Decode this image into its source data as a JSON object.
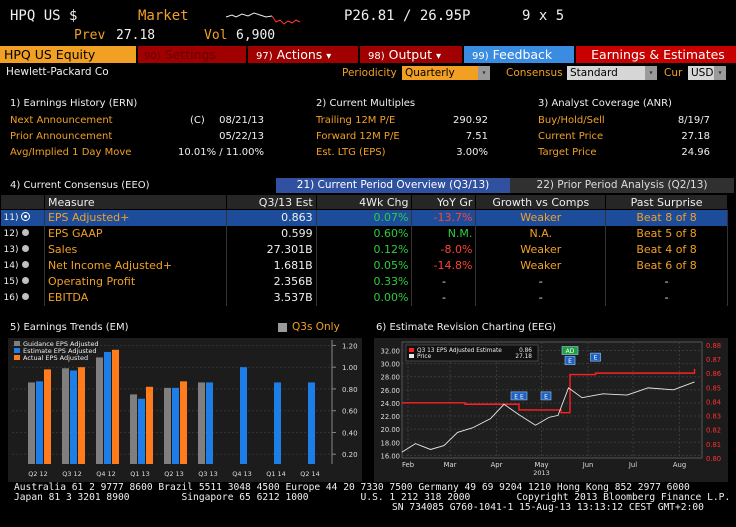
{
  "header": {
    "ticker": "HPQ US $",
    "market_label": "Market",
    "price": "P26.81 / 26.95P",
    "size": "9 x 5",
    "prev_label": "Prev",
    "prev_value": "27.18",
    "vol_label": "Vol",
    "vol_value": "6,900"
  },
  "toolbar": {
    "ticker_equity": "HPQ US Equity",
    "settings_num": "90)",
    "settings_label": "Settings",
    "actions_num": "97)",
    "actions_label": "Actions",
    "output_num": "98)",
    "output_label": "Output",
    "feedback_num": "99)",
    "feedback_label": "Feedback",
    "earnings_label": "Earnings & Estimates",
    "dropdown_glyph": "▾"
  },
  "subbar": {
    "company": "Hewlett-Packard Co",
    "periodicity_label": "Periodicity",
    "periodicity_value": "Quarterly",
    "consensus_label": "Consensus",
    "consensus_value": "Standard",
    "cur_label": "Cur",
    "cur_value": "USD"
  },
  "earnings_history": {
    "title": "1) Earnings History (ERN)",
    "rows": [
      {
        "label": "Next Announcement",
        "flag": "(C)",
        "value": "08/21/13"
      },
      {
        "label": "Prior Announcement",
        "flag": "",
        "value": "05/22/13"
      },
      {
        "label": "Avg/Implied 1 Day Move",
        "flag": "",
        "value": "10.01% / 11.00%"
      }
    ]
  },
  "current_multiples": {
    "title": "2) Current Multiples",
    "rows": [
      {
        "label": "Trailing 12M P/E",
        "value": "290.92"
      },
      {
        "label": "Forward 12M P/E",
        "value": "7.51"
      },
      {
        "label": "Est. LTG (EPS)",
        "value": "3.00%"
      }
    ]
  },
  "analyst_coverage": {
    "title": "3) Analyst Coverage (ANR)",
    "rows": [
      {
        "label": "Buy/Hold/Sell",
        "value": "8/19/7"
      },
      {
        "label": "Current Price",
        "value": "27.18"
      },
      {
        "label": "Target Price",
        "value": "24.96"
      }
    ]
  },
  "consensus": {
    "title": "4) Current Consensus (EEO)",
    "tab_current": "21) Current Period Overview (Q3/13)",
    "tab_prior": "22) Prior Period Analysis (Q2/13)",
    "headers": [
      "Measure",
      "Q3/13 Est",
      "4Wk Chg",
      "YoY Gr",
      "Growth vs Comps",
      "Past Surprise"
    ],
    "rows": [
      {
        "num": "11)",
        "measure": "EPS Adjusted+",
        "est": "0.863",
        "chg": "0.07%",
        "yoy": "-13.7%",
        "comps": "Weaker",
        "surprise": "Beat 8 of 8"
      },
      {
        "num": "12)",
        "measure": "EPS GAAP",
        "est": "0.599",
        "chg": "0.60%",
        "yoy": "N.M.",
        "comps": "N.A.",
        "surprise": "Beat 5 of 8"
      },
      {
        "num": "13)",
        "measure": "Sales",
        "est": "27.301B",
        "chg": "0.12%",
        "yoy": "-8.0%",
        "comps": "Weaker",
        "surprise": "Beat 4 of 8"
      },
      {
        "num": "14)",
        "measure": "Net Income Adjusted+",
        "est": "1.681B",
        "chg": "0.05%",
        "yoy": "-14.8%",
        "comps": "Weaker",
        "surprise": "Beat 6 of 8"
      },
      {
        "num": "15)",
        "measure": "Operating Profit",
        "est": "2.356B",
        "chg": "0.33%",
        "yoy": "-",
        "comps": "-",
        "surprise": "-"
      },
      {
        "num": "16)",
        "measure": "EBITDA",
        "est": "3.537B",
        "chg": "0.00%",
        "yoy": "-",
        "comps": "-",
        "surprise": "-"
      }
    ]
  },
  "earnings_trends": {
    "title": "5) Earnings Trends (EM)",
    "q3s_label": "Q3s Only",
    "colors": {
      "guidance": "#7f7f7f",
      "estimate": "#1e7ee8",
      "actual": "#ff7b1c"
    },
    "chart_data": {
      "type": "bar",
      "categories": [
        "Q2 12",
        "Q3 12",
        "Q4 12",
        "Q1 13",
        "Q2 13",
        "Q3 13",
        "Q4 13",
        "Q1 14",
        "Q2 14"
      ],
      "series": [
        {
          "name": "Guidance EPS Adjusted",
          "values": [
            0.86,
            0.99,
            1.09,
            0.75,
            0.81,
            0.86,
            null,
            null,
            null
          ]
        },
        {
          "name": "Estimate EPS Adjusted",
          "values": [
            0.87,
            0.97,
            1.14,
            0.71,
            0.81,
            0.86,
            1.0,
            0.86,
            0.86
          ]
        },
        {
          "name": "Actual EPS Adjusted",
          "values": [
            0.98,
            1.0,
            1.16,
            0.82,
            0.87,
            null,
            null,
            null,
            null
          ]
        }
      ],
      "yticks": [
        "0.20",
        "0.40",
        "0.60",
        "0.80",
        "1.00",
        "1.20"
      ],
      "ylim": [
        0.11,
        1.25
      ]
    }
  },
  "estimate_revision": {
    "title": "6) Estimate Revision Charting (EEG)",
    "legend_est": "Q3 13 EPS Adjusted Estimate",
    "legend_est_value": "0.86",
    "legend_price": "Price",
    "legend_price_value": "27.18",
    "colors": {
      "estimate": "#ff2020",
      "price": "#e8e8e8"
    },
    "year_label": "2013",
    "chart_data": {
      "type": "line",
      "x_labels": [
        "Feb",
        "Mar",
        "Apr",
        "May",
        "Jun",
        "Jul",
        "Aug"
      ],
      "left_ticks": [
        "16.00",
        "18.00",
        "20.00",
        "22.00",
        "24.00",
        "26.00",
        "28.00",
        "30.00",
        "32.00"
      ],
      "right_ticks": [
        "0.80",
        "0.81",
        "0.82",
        "0.83",
        "0.84",
        "0.85",
        "0.86",
        "0.87",
        "0.88"
      ],
      "left_lim": [
        15.6,
        33.3
      ],
      "right_lim": [
        0.8,
        0.882
      ],
      "price_series": {
        "name": "Price",
        "x": [
          "2013-02-01",
          "2013-02-10",
          "2013-02-20",
          "2013-03-01",
          "2013-03-10",
          "2013-03-20",
          "2013-04-01",
          "2013-04-10",
          "2013-04-20",
          "2013-05-01",
          "2013-05-10",
          "2013-05-16",
          "2013-05-23",
          "2013-06-01",
          "2013-06-15",
          "2013-07-01",
          "2013-07-15",
          "2013-08-01",
          "2013-08-15"
        ],
        "values": [
          16.5,
          17.8,
          16.9,
          17.5,
          19.5,
          20.2,
          21.6,
          23.8,
          22.2,
          20.6,
          21.8,
          22.1,
          26.3,
          24.8,
          25.4,
          25.2,
          26.3,
          26.0,
          27.2
        ]
      },
      "estimate_series": {
        "name": "Q3 13 EPS Adjusted Estimate",
        "x": [
          "2013-02-01",
          "2013-03-15",
          "2013-04-20",
          "2013-05-18",
          "2013-05-24",
          "2013-06-10",
          "2013-07-10",
          "2013-08-15"
        ],
        "values": [
          0.839,
          0.838,
          0.834,
          0.832,
          0.859,
          0.86,
          0.86,
          0.863
        ]
      },
      "markers": [
        {
          "label": "E E",
          "x": "2013-04-20"
        },
        {
          "label": "E",
          "x": "2013-05-08"
        },
        {
          "label": "E",
          "x": "2013-05-24"
        },
        {
          "label": "AD",
          "x": "2013-05-24"
        },
        {
          "label": "E",
          "x": "2013-06-10"
        }
      ]
    }
  },
  "footer": {
    "line1": "Australia 61 2 9777 8600 Brazil 5511 3048 4500 Europe 44 20 7330 7500 Germany 49 69 9204 1210 Hong Kong 852 2977 6000",
    "line2": "Japan 81 3 3201 8900         Singapore 65 6212 1000         U.S. 1 212 318 2000        Copyright 2013 Bloomberg Finance L.P.",
    "line3": "SN 734085 G760-1041-1 15-Aug-13 13:13:12 CEST GMT+2:00"
  }
}
